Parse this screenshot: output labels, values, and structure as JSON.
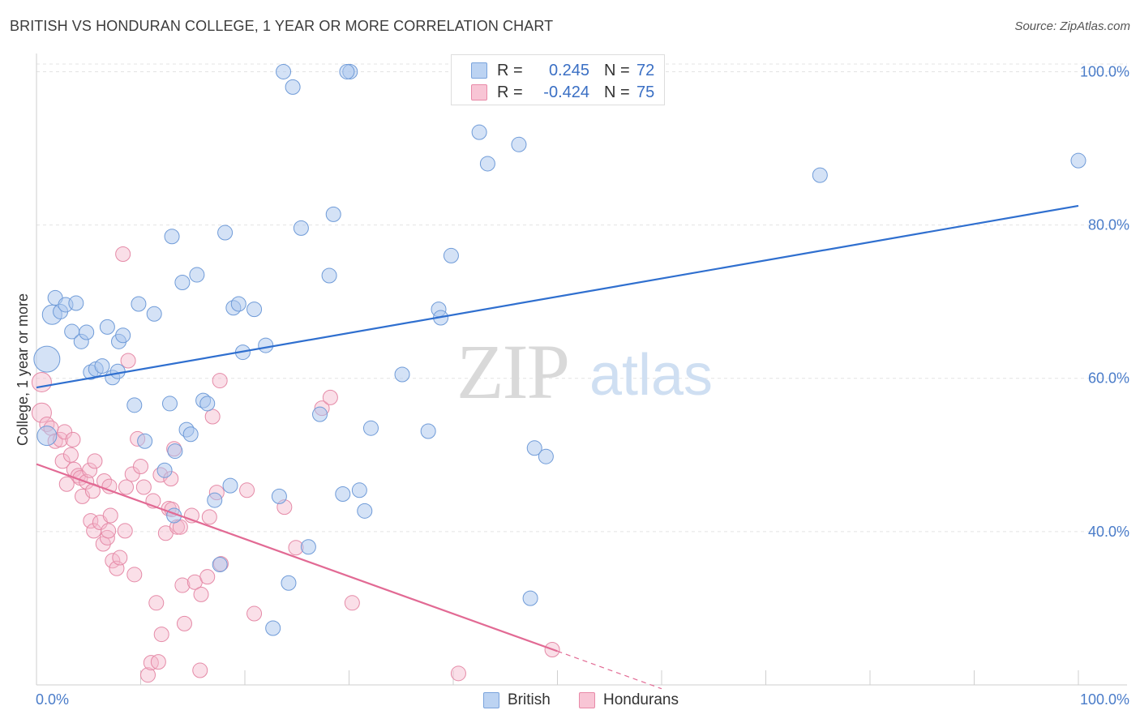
{
  "header": {
    "title": "BRITISH VS HONDURAN COLLEGE, 1 YEAR OR MORE CORRELATION CHART",
    "source": "Source: ZipAtlas.com"
  },
  "legend": {
    "rows": [
      {
        "r_label": "R =",
        "r_value": "0.245",
        "n_label": "N =",
        "n_value": "72",
        "fill": "#bcd3f2",
        "stroke": "#7aa3dc"
      },
      {
        "r_label": "R =",
        "r_value": "-0.424",
        "n_label": "N =",
        "n_value": "75",
        "fill": "#f8c5d5",
        "stroke": "#e88aa8"
      }
    ],
    "series_names": [
      "British",
      "Hondurans"
    ]
  },
  "watermark": {
    "left": "ZIP",
    "right": "atlas"
  },
  "colors": {
    "british_fill": "#a9c6ee",
    "british_stroke": "#6f9bd8",
    "british_line": "#2f6fcf",
    "honduran_fill": "#f5b8cb",
    "honduran_stroke": "#e58aa7",
    "honduran_line": "#e26a94",
    "grid": "#e3e3e3",
    "tick_label": "#4a7cc9"
  },
  "chart_data": {
    "type": "scatter",
    "title": "BRITISH VS HONDURAN COLLEGE, 1 YEAR OR MORE CORRELATION CHART",
    "xlabel": "",
    "ylabel": "College, 1 year or more",
    "xlim": [
      0,
      100
    ],
    "ylim": [
      20,
      101
    ],
    "x_tick_labels": [
      "0.0%",
      "100.0%"
    ],
    "y_ticks": [
      40,
      60,
      80,
      100
    ],
    "y_tick_labels": [
      "40.0%",
      "60.0%",
      "80.0%",
      "100.0%"
    ],
    "grid": true,
    "legend_position": "top-center",
    "series": [
      {
        "name": "British",
        "r": 0.245,
        "n": 72,
        "trend": {
          "x": [
            0,
            100
          ],
          "y": [
            58.8,
            82.5
          ]
        },
        "points": [
          [
            1,
            62.5,
            16
          ],
          [
            1,
            52.5,
            12
          ],
          [
            1.5,
            68.3,
            12
          ],
          [
            1.8,
            70.5,
            9
          ],
          [
            2.3,
            68.7,
            9
          ],
          [
            2.8,
            69.6,
            9
          ],
          [
            3.8,
            69.8,
            9
          ],
          [
            3.4,
            66.1,
            9
          ],
          [
            4.3,
            64.8,
            9
          ],
          [
            4.8,
            66.0,
            9
          ],
          [
            5.2,
            60.8,
            9
          ],
          [
            5.7,
            61.2,
            9
          ],
          [
            6.3,
            61.6,
            9
          ],
          [
            6.8,
            66.7,
            9
          ],
          [
            7.3,
            60.1,
            9
          ],
          [
            7.9,
            64.8,
            9
          ],
          [
            8.3,
            65.6,
            9
          ],
          [
            7.8,
            60.9,
            9
          ],
          [
            9.4,
            56.5,
            9
          ],
          [
            9.8,
            69.7,
            9
          ],
          [
            10.4,
            51.8,
            9
          ],
          [
            11.3,
            68.4,
            9
          ],
          [
            12.3,
            48.0,
            9
          ],
          [
            12.8,
            56.7,
            9
          ],
          [
            13.0,
            78.5,
            9
          ],
          [
            14.0,
            72.5,
            9
          ],
          [
            14.4,
            53.3,
            9
          ],
          [
            14.8,
            52.7,
            9
          ],
          [
            13.2,
            42.1,
            9
          ],
          [
            13.3,
            50.5,
            9
          ],
          [
            15.4,
            73.5,
            9
          ],
          [
            16.0,
            57.1,
            9
          ],
          [
            16.4,
            56.7,
            9
          ],
          [
            17.1,
            44.1,
            9
          ],
          [
            17.6,
            35.7,
            9
          ],
          [
            18.1,
            79.0,
            9
          ],
          [
            18.6,
            46.0,
            9
          ],
          [
            18.9,
            69.2,
            9
          ],
          [
            19.4,
            69.7,
            9
          ],
          [
            19.8,
            63.4,
            9
          ],
          [
            20.9,
            69.0,
            9
          ],
          [
            22.0,
            64.3,
            9
          ],
          [
            23.3,
            44.6,
            9
          ],
          [
            24.2,
            33.3,
            9
          ],
          [
            22.7,
            27.4,
            9
          ],
          [
            23.7,
            100,
            9
          ],
          [
            24.6,
            98.0,
            9
          ],
          [
            25.4,
            79.6,
            9
          ],
          [
            27.2,
            55.3,
            9
          ],
          [
            28.1,
            73.4,
            9
          ],
          [
            28.5,
            81.4,
            9
          ],
          [
            29.4,
            44.9,
            9
          ],
          [
            30.1,
            100,
            9
          ],
          [
            29.8,
            100,
            9
          ],
          [
            31.0,
            45.4,
            9
          ],
          [
            31.5,
            42.7,
            9
          ],
          [
            32.1,
            53.5,
            9
          ],
          [
            26.1,
            38.0,
            9
          ],
          [
            35.1,
            60.5,
            9
          ],
          [
            37.6,
            53.1,
            9
          ],
          [
            38.6,
            69.0,
            9
          ],
          [
            38.8,
            67.9,
            9
          ],
          [
            39.8,
            76.0,
            9
          ],
          [
            42.5,
            92.1,
            9
          ],
          [
            43.3,
            88.0,
            9
          ],
          [
            46.3,
            90.5,
            9
          ],
          [
            47.8,
            50.9,
            9
          ],
          [
            48.9,
            49.8,
            9
          ],
          [
            47.4,
            31.3,
            9
          ],
          [
            52.0,
            100,
            9
          ],
          [
            75.2,
            86.5,
            9
          ],
          [
            100,
            88.4,
            9
          ]
        ]
      },
      {
        "name": "Hondurans",
        "r": -0.424,
        "n": 75,
        "trend": {
          "x": [
            0,
            50
          ],
          "y": [
            48.8,
            24.4
          ]
        },
        "trend_dashed": {
          "x": [
            50,
            60
          ],
          "y": [
            24.4,
            19.5
          ]
        },
        "points": [
          [
            0.5,
            59.5,
            12
          ],
          [
            0.5,
            55.5,
            12
          ],
          [
            1,
            54.0,
            9
          ],
          [
            1.4,
            53.5,
            9
          ],
          [
            1.8,
            51.8,
            9
          ],
          [
            2.3,
            52.0,
            9
          ],
          [
            2.5,
            49.2,
            9
          ],
          [
            2.7,
            53.0,
            9
          ],
          [
            2.9,
            46.2,
            9
          ],
          [
            3.3,
            50.0,
            9
          ],
          [
            3.5,
            52.0,
            9
          ],
          [
            3.6,
            48.1,
            9
          ],
          [
            4.0,
            47.3,
            9
          ],
          [
            4.2,
            47.0,
            9
          ],
          [
            4.4,
            44.6,
            9
          ],
          [
            4.8,
            46.5,
            9
          ],
          [
            5.1,
            48.0,
            9
          ],
          [
            5.6,
            49.2,
            9
          ],
          [
            5.4,
            45.3,
            9
          ],
          [
            6.5,
            46.6,
            9
          ],
          [
            5.2,
            41.4,
            9
          ],
          [
            5.5,
            40.1,
            9
          ],
          [
            6.1,
            41.2,
            9
          ],
          [
            6.4,
            38.4,
            9
          ],
          [
            6.8,
            39.2,
            9
          ],
          [
            6.9,
            40.1,
            9
          ],
          [
            7.0,
            45.9,
            9
          ],
          [
            7.1,
            42.1,
            9
          ],
          [
            7.3,
            36.2,
            9
          ],
          [
            7.7,
            35.2,
            9
          ],
          [
            8.0,
            36.6,
            9
          ],
          [
            8.6,
            45.8,
            9
          ],
          [
            8.5,
            40.1,
            9
          ],
          [
            8.8,
            62.3,
            9
          ],
          [
            9.2,
            47.5,
            9
          ],
          [
            9.4,
            34.4,
            9
          ],
          [
            9.7,
            52.1,
            9
          ],
          [
            10.0,
            48.5,
            9
          ],
          [
            10.3,
            45.8,
            9
          ],
          [
            10.7,
            21.3,
            9
          ],
          [
            11.0,
            22.9,
            9
          ],
          [
            11.2,
            44.0,
            9
          ],
          [
            11.5,
            30.7,
            9
          ],
          [
            11.9,
            47.4,
            9
          ],
          [
            12.0,
            26.6,
            9
          ],
          [
            12.4,
            39.8,
            9
          ],
          [
            12.7,
            43.0,
            9
          ],
          [
            12.9,
            46.9,
            9
          ],
          [
            13.0,
            42.9,
            9
          ],
          [
            13.2,
            50.8,
            9
          ],
          [
            13.5,
            40.6,
            9
          ],
          [
            13.8,
            40.6,
            9
          ],
          [
            14.0,
            33.0,
            9
          ],
          [
            14.2,
            28.0,
            9
          ],
          [
            14.9,
            42.1,
            9
          ],
          [
            15.2,
            33.4,
            9
          ],
          [
            15.7,
            21.9,
            9
          ],
          [
            15.8,
            31.8,
            9
          ],
          [
            16.4,
            34.1,
            9
          ],
          [
            16.6,
            41.9,
            9
          ],
          [
            16.9,
            55.0,
            9
          ],
          [
            17.3,
            45.1,
            9
          ],
          [
            17.7,
            35.8,
            9
          ],
          [
            17.6,
            59.7,
            9
          ],
          [
            20.2,
            45.4,
            9
          ],
          [
            20.9,
            29.3,
            9
          ],
          [
            23.8,
            43.2,
            9
          ],
          [
            24.9,
            37.9,
            9
          ],
          [
            27.4,
            56.1,
            9
          ],
          [
            28.2,
            57.5,
            9
          ],
          [
            30.3,
            30.7,
            9
          ],
          [
            8.3,
            76.2,
            9
          ],
          [
            40.5,
            21.5,
            9
          ],
          [
            49.5,
            24.6,
            9
          ],
          [
            11.7,
            23.0,
            9
          ]
        ]
      }
    ]
  }
}
